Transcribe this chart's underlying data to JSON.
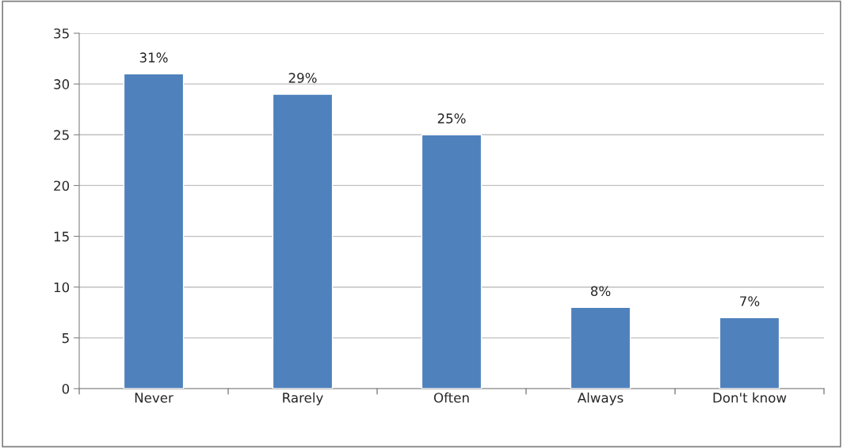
{
  "chart_data": {
    "type": "bar",
    "categories": [
      "Never",
      "Rarely",
      "Often",
      "Always",
      "Don't know"
    ],
    "values": [
      31,
      29,
      25,
      8,
      7
    ],
    "value_labels": [
      "31%",
      "29%",
      "25%",
      "8%",
      "7%"
    ],
    "color": "#4f81bd",
    "ylim": [
      0,
      35
    ],
    "yticks": [
      0,
      5,
      10,
      15,
      20,
      25,
      30,
      35
    ],
    "grid": "y",
    "legend": false
  }
}
